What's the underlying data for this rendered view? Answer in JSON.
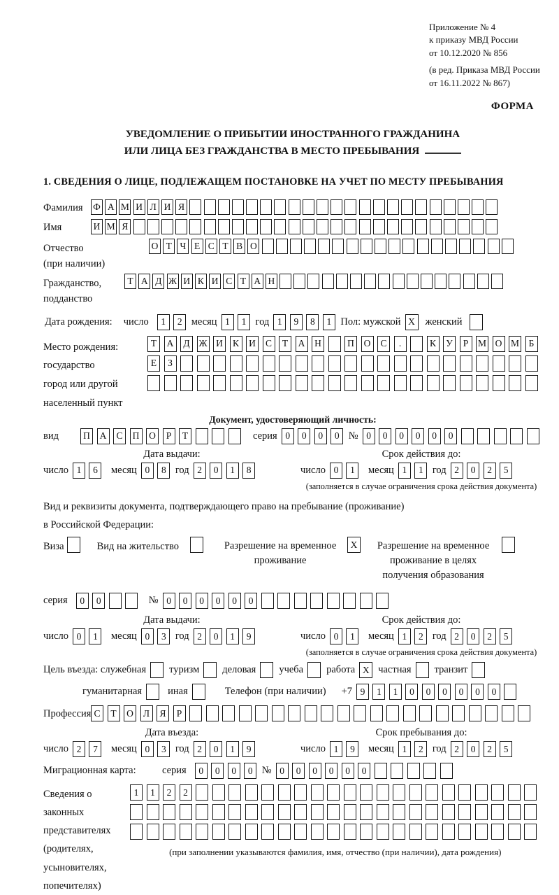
{
  "header": {
    "lines": [
      "Приложение № 4",
      "к приказу МВД России",
      "от 10.12.2020 № 856",
      "(в ред. Приказа МВД России",
      "от 16.11.2022 № 867)"
    ],
    "forma": "ФОРМА"
  },
  "title": {
    "line1": "УВЕДОМЛЕНИЕ О ПРИБЫТИИ ИНОСТРАННОГО ГРАЖДАНИНА",
    "line2": "ИЛИ ЛИЦА БЕЗ ГРАЖДАНСТВА В МЕСТО ПРЕБЫВАНИЯ",
    "section1": "1. СВЕДЕНИЯ О ЛИЦЕ, ПОДЛЕЖАЩЕМ ПОСТАНОВКЕ НА УЧЕТ ПО МЕСТУ ПРЕБЫВАНИЯ"
  },
  "labels": {
    "surname": "Фамилия",
    "name": "Имя",
    "patronymic": "Отчество",
    "patronymic_note": "(при наличии)",
    "citizenship1": "Гражданство,",
    "citizenship2": "подданство",
    "birthdate": "Дата рождения:",
    "day": "число",
    "month": "месяц",
    "year": "год",
    "sex": "Пол: мужской",
    "female": "женский",
    "birthplace_lines": [
      "Место рождения:",
      "государство",
      "город или другой",
      "населенный пункт"
    ],
    "doc_heading": "Документ, удостоверяющий личность:",
    "vid": "вид",
    "series": "серия",
    "number": "№",
    "issue_date": "Дата выдачи:",
    "valid_until": "Срок действия до:",
    "valid_note": "(заполняется в случае ограничения срока действия документа)",
    "req_line1": "Вид и реквизиты документа, подтверждающего право на пребывание (проживание)",
    "req_line2": "в Российской Федерации:",
    "visa": "Виза",
    "residence_permit": "Вид на жительство",
    "temp_residence": "Разрешение на временное проживание",
    "temp_residence_edu": "Разрешение на временное проживание в целях получения образования",
    "purpose": "Цель въезда: служебная",
    "tourism": "туризм",
    "business": "деловая",
    "study": "учеба",
    "work": "работа",
    "private": "частная",
    "transit": "транзит",
    "humanitarian": "гуманитарная",
    "other": "иная",
    "phone": "Телефон (при наличии)",
    "phone_prefix": "+7",
    "profession": "Профессия",
    "entry_date": "Дата въезда:",
    "stay_until": "Срок пребывания до:",
    "migcard": "Миграционная карта:",
    "rep_lines": [
      "Сведения о",
      "законных",
      "представителях",
      "(родителях,",
      "усыновителях,",
      "попечителях)"
    ],
    "rep_note": "(при заполнении указываются фамилия, имя, отчество (при наличии), дата рождения)"
  },
  "values": {
    "surname": "ФАМИЛИЯ______________________",
    "name": "ИМЯ__________________________",
    "patronymic": "ОТЧЕСТВО__________________",
    "citizenship": "ТАДЖИКИСТАН________________",
    "birth_day": "12",
    "birth_month": "11",
    "birth_year": "1981",
    "sex_male": "X",
    "sex_female": "_",
    "birthplace_row1": "ТАДЖИКИСТАН_ПОС._КУРМОМБ",
    "birthplace_row2": "ЕЗ______________________",
    "birthplace_row3": "________________________",
    "id_type": "ПАСПОРТ___",
    "id_series": "0000",
    "id_number": "000000_____",
    "id_issue_day": "16",
    "id_issue_month": "08",
    "id_issue_year": "2018",
    "id_valid_day": "01",
    "id_valid_month": "11",
    "id_valid_year": "2025",
    "visa_check": "_",
    "residence_permit_check": "_",
    "temp_residence_check": "X",
    "temp_residence_edu_check": "_",
    "permit_series": "00__",
    "permit_number": "000000________",
    "permit_issue_day": "01",
    "permit_issue_month": "03",
    "permit_issue_year": "2019",
    "permit_valid_day": "01",
    "permit_valid_month": "12",
    "permit_valid_year": "2025",
    "purpose_business_trip": "_",
    "purpose_tourism": "_",
    "purpose_business": "_",
    "purpose_study": "_",
    "purpose_work": "X",
    "purpose_private": "_",
    "purpose_transit": "_",
    "purpose_humanitarian": "_",
    "purpose_other": "_",
    "phone": "911000000_",
    "profession": "СТОЛЯР_____________________",
    "entry_day": "27",
    "entry_month": "03",
    "entry_year": "2019",
    "stay_day": "19",
    "stay_month": "12",
    "stay_year": "2025",
    "migcard_series": "0000",
    "migcard_number": "000000_____",
    "rep_row1": "1122_____________________",
    "rep_row2": "_________________________",
    "rep_row3": "_________________________"
  }
}
